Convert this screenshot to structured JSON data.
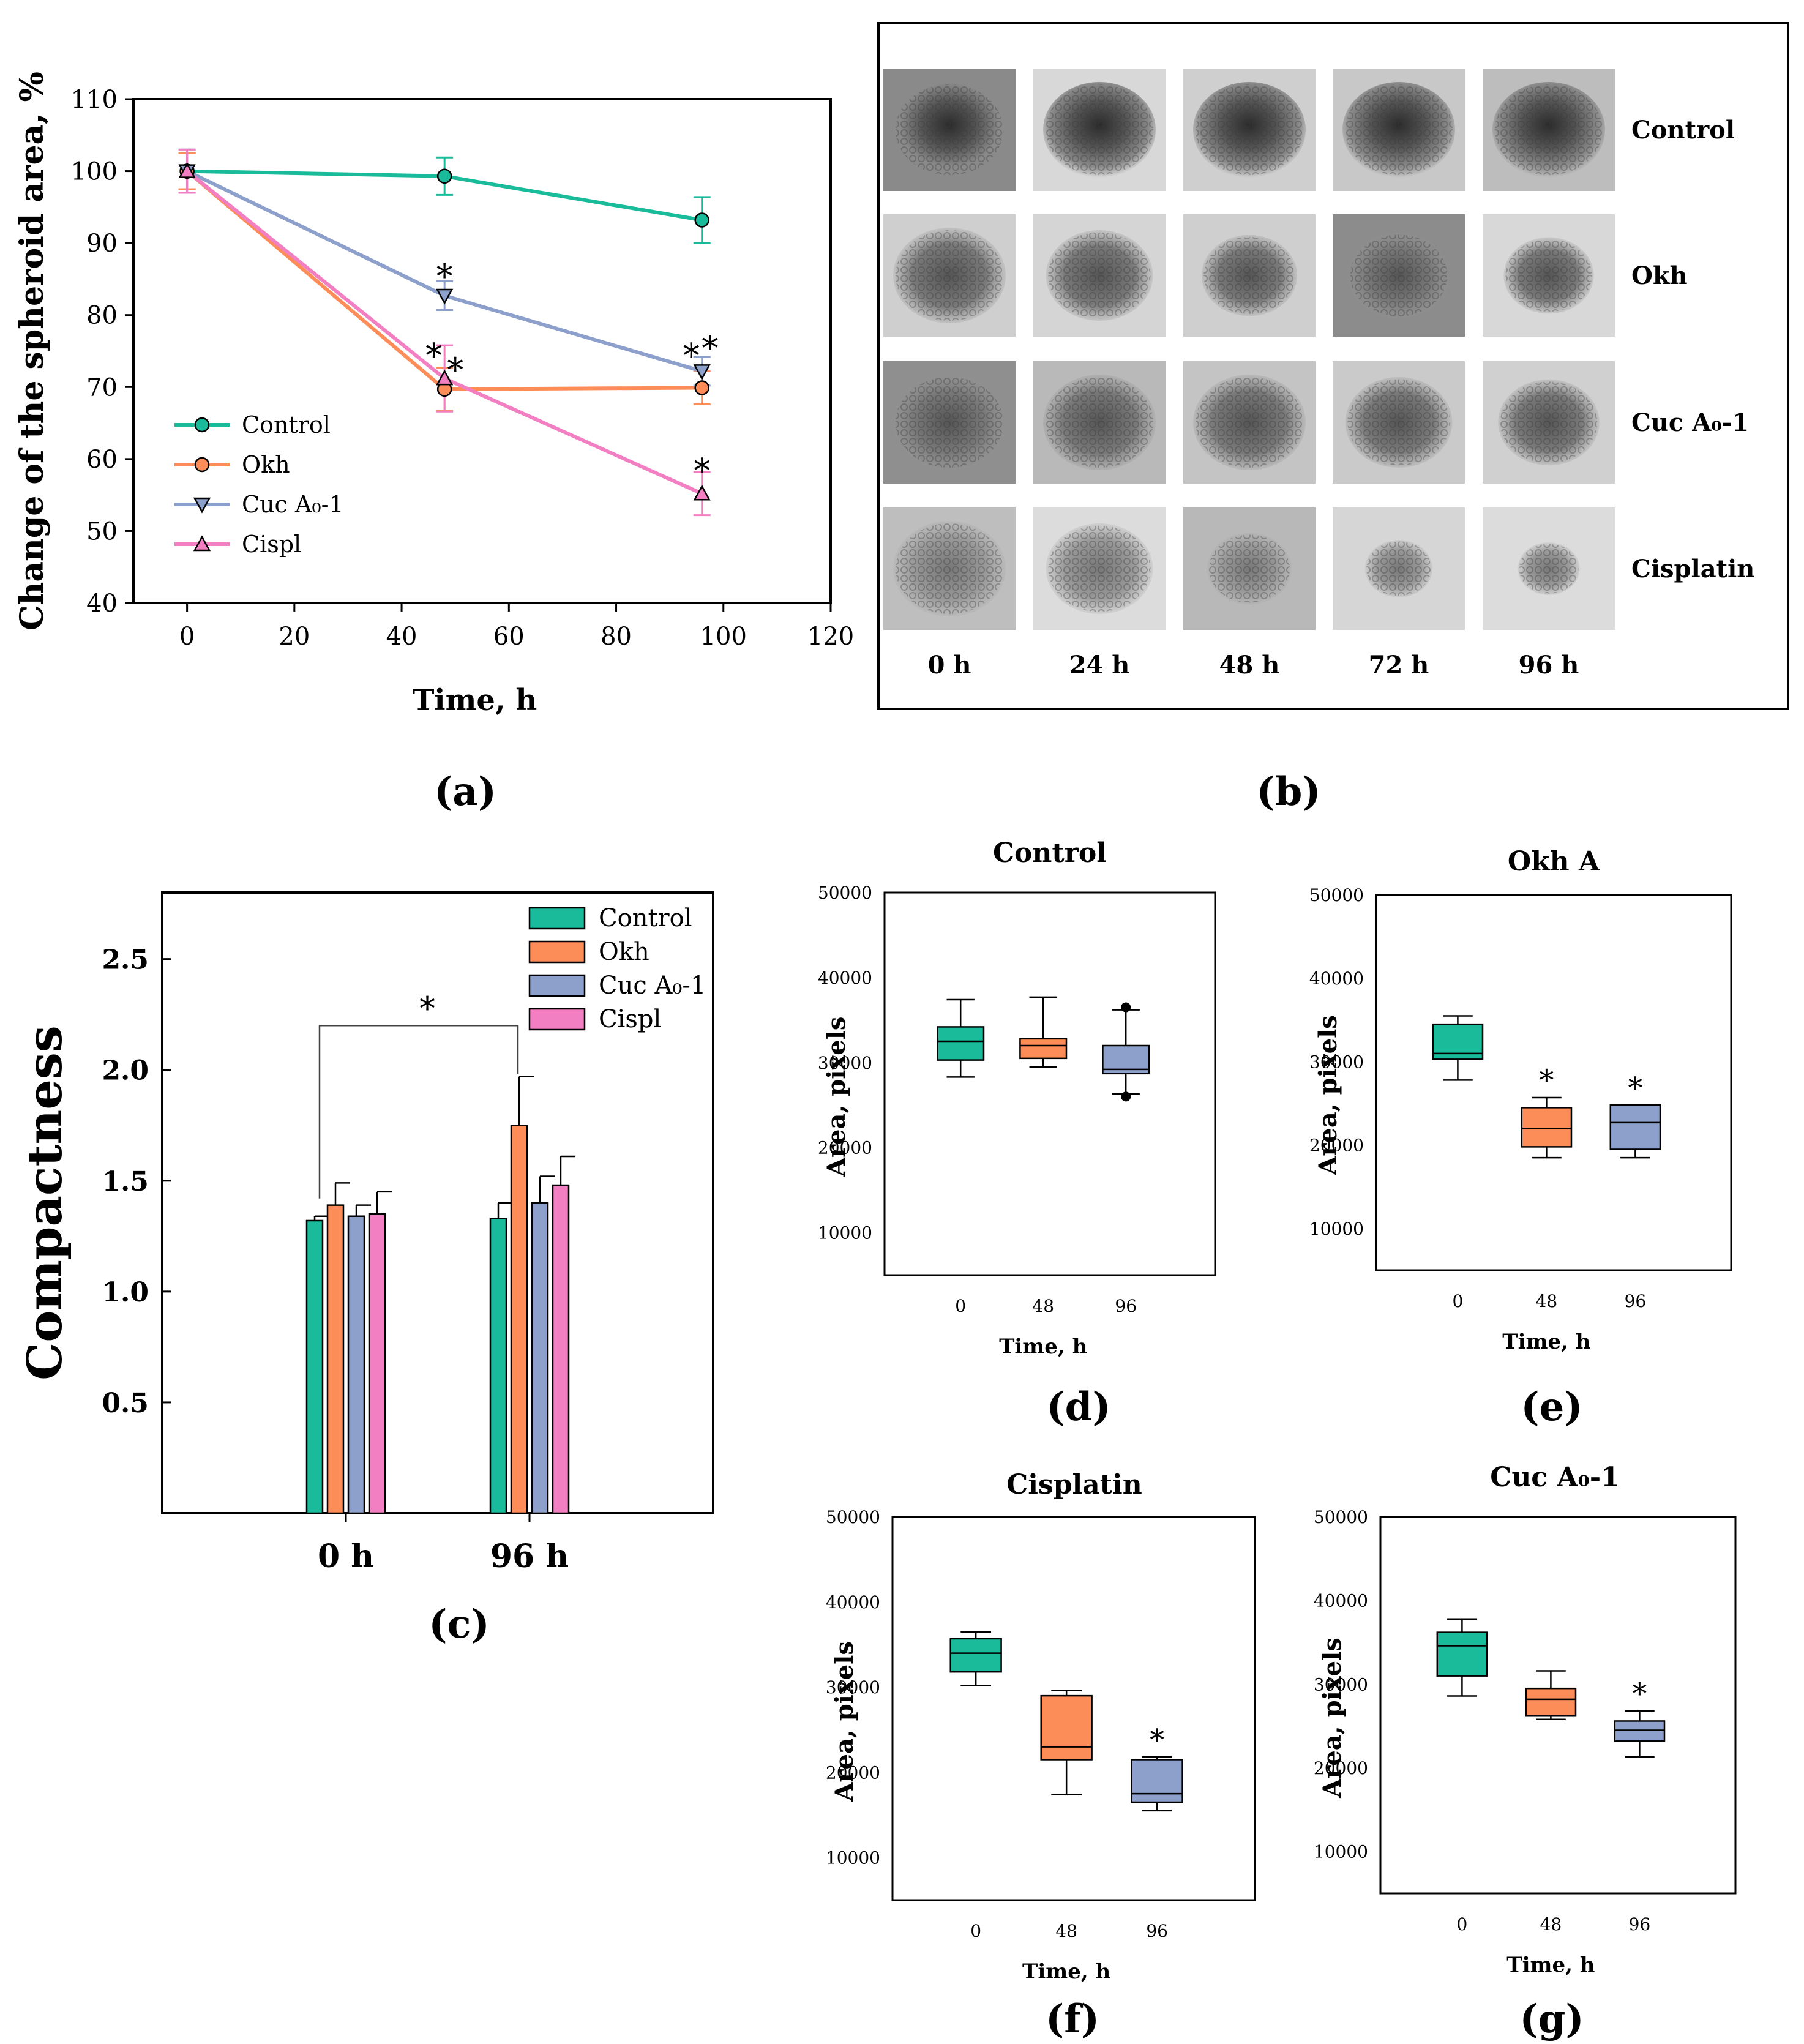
{
  "colors": {
    "control": "#19bb9b",
    "okh": "#fc8d59",
    "cuc": "#8da0cb",
    "cispl": "#f27fc2",
    "axis": "#000000"
  },
  "panel_labels": [
    "(a)",
    "(b)",
    "(c)",
    "(d)",
    "(e)",
    "(f)",
    "(g)"
  ],
  "panel_b": {
    "row_labels": [
      "Control",
      "Okh",
      "Cuc A₀-1",
      "Cisplatin"
    ],
    "time_labels": [
      "0 h",
      "24 h",
      "48 h",
      "72 h",
      "96 h"
    ]
  },
  "chart_data": [
    {
      "id": "a",
      "type": "line",
      "xlabel": "Time, h",
      "ylabel": "Change of the spheroid area, %",
      "xlim": [
        -10,
        120
      ],
      "ylim": [
        40,
        110
      ],
      "xticks": [
        0,
        20,
        40,
        60,
        80,
        100,
        120
      ],
      "yticks": [
        40,
        50,
        60,
        70,
        80,
        90,
        100,
        110
      ],
      "legend_position": "left-middle",
      "series": [
        {
          "name": "Control",
          "key": "control",
          "marker": "circle",
          "x": [
            0,
            48,
            96
          ],
          "y": [
            100,
            99.3,
            93.2
          ],
          "err": [
            2.5,
            2.6,
            3.2
          ]
        },
        {
          "name": "Okh",
          "key": "okh",
          "marker": "circle",
          "x": [
            0,
            48,
            96
          ],
          "y": [
            100,
            69.7,
            69.9
          ],
          "err": [
            2.5,
            3.0,
            2.3
          ]
        },
        {
          "name": "Cuc A0-1",
          "key": "cuc",
          "marker": "triangle-down",
          "x": [
            0,
            48,
            96
          ],
          "y": [
            100,
            82.7,
            72.2
          ],
          "err": [
            3.0,
            2.0,
            2.0
          ]
        },
        {
          "name": "Cispl",
          "key": "cispl",
          "marker": "triangle-up",
          "x": [
            0,
            48,
            96
          ],
          "y": [
            100,
            71.2,
            55.2
          ],
          "err": [
            3.0,
            4.6,
            3.0
          ]
        }
      ],
      "annotations": [
        {
          "text": "*",
          "x": 48,
          "y": 86
        },
        {
          "text": "*",
          "x": 46,
          "y": 75
        },
        {
          "text": "*",
          "x": 50,
          "y": 73
        },
        {
          "text": "*",
          "x": 94,
          "y": 75
        },
        {
          "text": "*",
          "x": 97.5,
          "y": 76
        },
        {
          "text": "*",
          "x": 96,
          "y": 59
        }
      ]
    },
    {
      "id": "c",
      "type": "bar",
      "ylabel": "Compactness",
      "categories": [
        "0 h",
        "96 h"
      ],
      "ylim": [
        0,
        2.8
      ],
      "yticks": [
        "0.5",
        "1.0",
        "1.5",
        "2.0",
        "2.5"
      ],
      "legend_position": "top-right",
      "series": [
        {
          "name": "Control",
          "key": "control",
          "values": [
            1.32,
            1.33
          ],
          "err": [
            0.02,
            0.07
          ]
        },
        {
          "name": "Okh",
          "key": "okh",
          "values": [
            1.39,
            1.75
          ],
          "err": [
            0.1,
            0.22
          ]
        },
        {
          "name": "Cuc A0-1",
          "key": "cuc",
          "values": [
            1.34,
            1.4
          ],
          "err": [
            0.05,
            0.12
          ]
        },
        {
          "name": "Cispl",
          "key": "cispl",
          "values": [
            1.35,
            1.48
          ],
          "err": [
            0.1,
            0.13
          ]
        }
      ],
      "significance": {
        "text": "*",
        "from": "Control 0 h",
        "to": "Okh 96 h"
      }
    },
    {
      "id": "d",
      "type": "box",
      "title": "Control",
      "xlabel": "Time, h",
      "ylabel": "Area, pixels",
      "categories": [
        "0",
        "48",
        "96"
      ],
      "ylim": [
        5000,
        50000
      ],
      "yticks": [
        "10000",
        "20000",
        "30000",
        "40000",
        "50000"
      ],
      "boxes": [
        {
          "min": 28300,
          "q1": 30300,
          "median": 32500,
          "q3": 34200,
          "max": 37400,
          "key": "control"
        },
        {
          "min": 29500,
          "q1": 30500,
          "median": 32000,
          "q3": 32800,
          "max": 37700,
          "key": "okh"
        },
        {
          "min": 26300,
          "q1": 28700,
          "median": 29200,
          "q3": 32000,
          "max": 36200,
          "key": "cuc",
          "outliers": [
            36500,
            26000
          ]
        }
      ],
      "stars": []
    },
    {
      "id": "e",
      "type": "box",
      "title": "Okh A",
      "xlabel": "Time, h",
      "ylabel": "Area, pixels",
      "categories": [
        "0",
        "48",
        "96"
      ],
      "ylim": [
        5000,
        50000
      ],
      "yticks": [
        "10000",
        "20000",
        "30000",
        "40000",
        "50000"
      ],
      "boxes": [
        {
          "min": 27800,
          "q1": 30300,
          "median": 31000,
          "q3": 34500,
          "max": 35500,
          "key": "control"
        },
        {
          "min": 18500,
          "q1": 19800,
          "median": 22000,
          "q3": 24500,
          "max": 25700,
          "key": "okh"
        },
        {
          "min": 18500,
          "q1": 19500,
          "median": 22700,
          "q3": 24800,
          "max": 24800,
          "key": "cuc"
        }
      ],
      "stars": [
        1,
        2
      ]
    },
    {
      "id": "f",
      "type": "box",
      "title": "Cisplatin",
      "xlabel": "Time, h",
      "ylabel": "Area, pixels",
      "categories": [
        "0",
        "48",
        "96"
      ],
      "ylim": [
        5000,
        50000
      ],
      "yticks": [
        "10000",
        "20000",
        "30000",
        "40000",
        "50000"
      ],
      "boxes": [
        {
          "min": 30200,
          "q1": 31800,
          "median": 34000,
          "q3": 35700,
          "max": 36500,
          "key": "control"
        },
        {
          "min": 17400,
          "q1": 21500,
          "median": 23000,
          "q3": 29000,
          "max": 29600,
          "key": "okh"
        },
        {
          "min": 15500,
          "q1": 16500,
          "median": 17500,
          "q3": 21500,
          "max": 21800,
          "key": "cuc"
        }
      ],
      "stars": [
        2
      ]
    },
    {
      "id": "g",
      "type": "box",
      "title": "Cuc A0-1",
      "xlabel": "Time, h",
      "ylabel": "Area, pixels",
      "categories": [
        "0",
        "48",
        "96"
      ],
      "ylim": [
        5000,
        50000
      ],
      "yticks": [
        "10000",
        "20000",
        "30000",
        "40000",
        "50000"
      ],
      "boxes": [
        {
          "min": 28600,
          "q1": 31000,
          "median": 34600,
          "q3": 36200,
          "max": 37800,
          "key": "control"
        },
        {
          "min": 25800,
          "q1": 26200,
          "median": 28200,
          "q3": 29500,
          "max": 31600,
          "key": "okh"
        },
        {
          "min": 21300,
          "q1": 23200,
          "median": 24500,
          "q3": 25600,
          "max": 26800,
          "key": "cuc"
        }
      ],
      "stars": [
        2
      ]
    }
  ]
}
